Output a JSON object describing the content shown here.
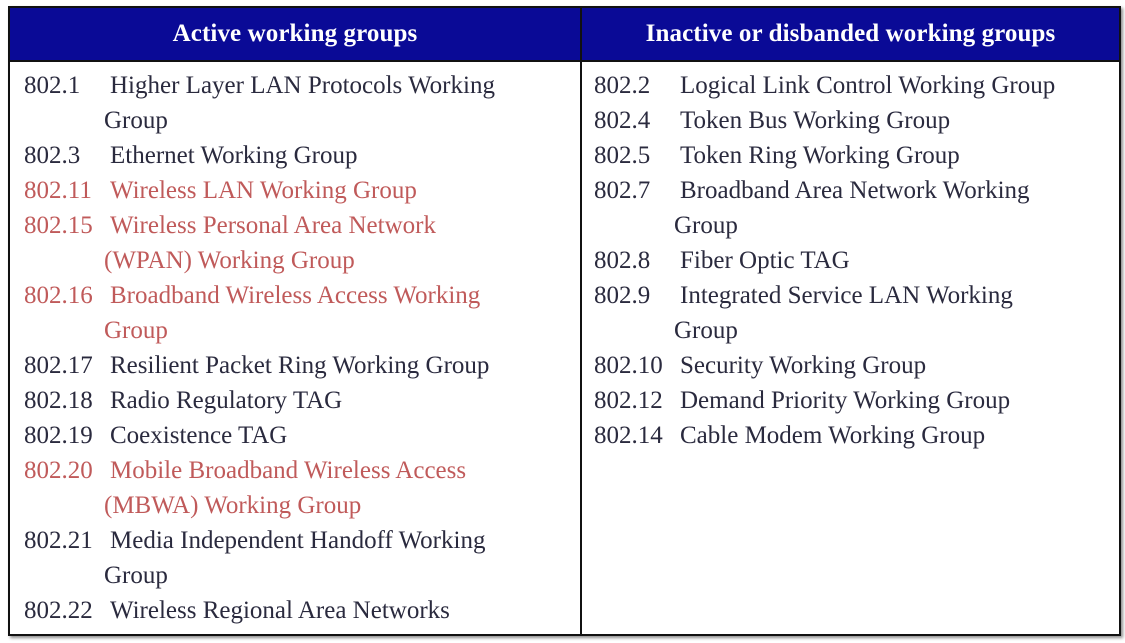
{
  "headers": {
    "active": "Active working groups",
    "inactive": "Inactive or disbanded working groups"
  },
  "colors": {
    "header_bg": "#0a0a96",
    "header_text": "#ffffff",
    "body_text": "#2a2a3e",
    "highlight_text": "#c05a5a"
  },
  "active": [
    {
      "num": "802.1",
      "line1": "Higher Layer LAN Protocols Working",
      "line2": "Group",
      "highlight": false
    },
    {
      "num": "802.3",
      "line1": "Ethernet Working Group",
      "line2": "",
      "highlight": false
    },
    {
      "num": "802.11",
      "line1": "Wireless LAN Working Group",
      "line2": "",
      "highlight": true
    },
    {
      "num": "802.15",
      "line1": "Wireless Personal Area Network",
      "line2": "(WPAN) Working Group",
      "highlight": true
    },
    {
      "num": "802.16",
      "line1": "Broadband Wireless Access Working",
      "line2": "Group",
      "highlight": true
    },
    {
      "num": "802.17",
      "line1": "Resilient Packet Ring Working Group",
      "line2": "",
      "highlight": false
    },
    {
      "num": "802.18",
      "line1": "Radio Regulatory TAG",
      "line2": "",
      "highlight": false
    },
    {
      "num": "802.19",
      "line1": "Coexistence TAG",
      "line2": "",
      "highlight": false
    },
    {
      "num": "802.20",
      "line1": "Mobile Broadband Wireless Access",
      "line2": "(MBWA) Working Group",
      "highlight": true
    },
    {
      "num": "802.21",
      "line1": "Media Independent Handoff Working",
      "line2": "Group",
      "highlight": false
    },
    {
      "num": "802.22",
      "line1": "Wireless Regional Area Networks",
      "line2": "",
      "highlight": false
    }
  ],
  "inactive": [
    {
      "num": "802.2",
      "line1": "Logical Link Control Working Group",
      "line2": ""
    },
    {
      "num": "802.4",
      "line1": "Token Bus Working Group",
      "line2": ""
    },
    {
      "num": "802.5",
      "line1": "Token Ring Working Group",
      "line2": ""
    },
    {
      "num": "802.7",
      "line1": "Broadband Area Network Working",
      "line2": "Group"
    },
    {
      "num": "802.8",
      "line1": "Fiber Optic TAG",
      "line2": ""
    },
    {
      "num": "802.9",
      "line1": "Integrated Service LAN Working",
      "line2": "Group"
    },
    {
      "num": "802.10",
      "line1": "Security Working Group",
      "line2": ""
    },
    {
      "num": "802.12",
      "line1": "Demand Priority Working Group",
      "line2": ""
    },
    {
      "num": "802.14",
      "line1": "Cable Modem Working Group",
      "line2": ""
    }
  ]
}
